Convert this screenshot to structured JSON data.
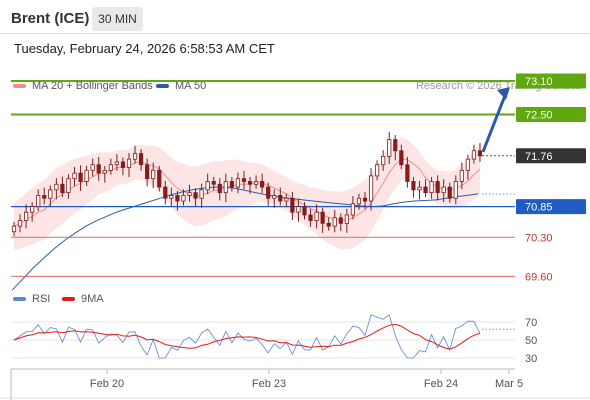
{
  "header": {
    "instrument": "Brent (ICE)",
    "timeframe": "30 MIN"
  },
  "timestamp": "Tuesday, February 24, 2026 6:58:53 AM CET",
  "legend": {
    "ma20": "MA 20 + Bollinger Bands",
    "ma50": "MA 50",
    "credit": "Research © 2026 Trading Central",
    "ma20_color": "#f48c8c",
    "ma50_color": "#2e5d9e"
  },
  "rsi_legend": {
    "rsi": "RSI",
    "ma9": "9MA",
    "rsi_color": "#5b86d6",
    "ma9_color": "#e01b1b"
  },
  "chart_data": [
    {
      "type": "candlestick",
      "x_ticks": [
        "Feb 20",
        "Feb 23",
        "Feb 24",
        "Mar 5"
      ],
      "levels": [
        {
          "label": "73.10",
          "value": 73.1,
          "style": "target",
          "color": "#5fa80f"
        },
        {
          "label": "72.50",
          "value": 72.5,
          "style": "target",
          "color": "#5fa80f"
        },
        {
          "label": "71.76",
          "value": 71.76,
          "style": "last",
          "color": "#333333"
        },
        {
          "label": "70.85",
          "value": 70.85,
          "style": "pivot",
          "color": "#1f5cc4"
        },
        {
          "label": "70.30",
          "value": 70.3,
          "style": "support",
          "color": "#e06666"
        },
        {
          "label": "69.60",
          "value": 69.6,
          "style": "support",
          "color": "#e06666"
        }
      ],
      "closes": [
        70.5,
        70.6,
        70.75,
        70.85,
        71.05,
        71.0,
        71.15,
        71.25,
        71.1,
        71.35,
        71.45,
        71.3,
        71.5,
        71.6,
        71.45,
        71.5,
        71.6,
        71.65,
        71.55,
        71.7,
        71.8,
        71.6,
        71.35,
        71.5,
        71.2,
        71.0,
        71.05,
        70.95,
        71.05,
        71.1,
        71.0,
        71.15,
        71.3,
        71.25,
        71.1,
        71.3,
        71.2,
        71.35,
        71.3,
        71.25,
        71.3,
        71.2,
        71.0,
        71.05,
        70.95,
        71.0,
        70.75,
        70.85,
        70.7,
        70.6,
        70.75,
        70.55,
        70.5,
        70.65,
        70.55,
        70.7,
        70.9,
        71.0,
        70.95,
        71.4,
        71.6,
        71.75,
        72.05,
        71.85,
        71.6,
        71.3,
        71.15,
        71.2,
        71.1,
        71.3,
        71.1,
        71.2,
        71.0,
        71.3,
        71.5,
        71.7,
        71.85,
        71.76
      ],
      "ma50": [
        69.35,
        69.55,
        69.75,
        69.93,
        70.1,
        70.25,
        70.38,
        70.5,
        70.6,
        70.68,
        70.76,
        70.82,
        70.88,
        70.94,
        71.0,
        71.06,
        71.11,
        71.15,
        71.18,
        71.2,
        71.2,
        71.18,
        71.14,
        71.1,
        71.06,
        71.03,
        71.0,
        70.98,
        70.96,
        70.94,
        70.92,
        70.9,
        70.88,
        70.86,
        70.85,
        70.86,
        70.9,
        70.93,
        70.95,
        70.96,
        70.97,
        71.0,
        71.03,
        71.05,
        71.08
      ],
      "rsi_ticks": [
        70,
        50,
        30
      ],
      "rsi_last": 62
    }
  ]
}
